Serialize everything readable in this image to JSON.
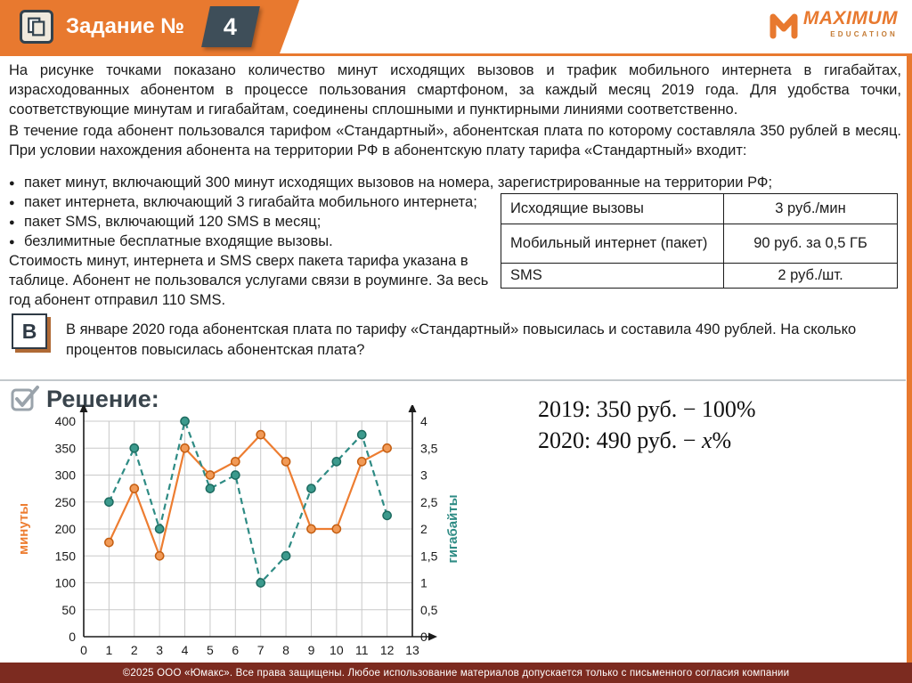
{
  "header": {
    "task_label": "Задание №",
    "task_number": "4",
    "logo": {
      "brand": "MAXIMUM",
      "sub": "EDUCATION"
    }
  },
  "problem": {
    "p1": "На рисунке точками показано количество минут исходящих вызовов и трафик мобильного интернета в гигабайтах, израсходованных абонентом в процессе пользования смартфоном, за каждый месяц 2019 года. Для удобства точки, соответствующие минутам и гигабайтам, соединены сплошными и пунктирными линиями соответственно.",
    "p2": "В течение года абонент пользовался тарифом «Стандартный», абонентская плата по которому составляла 350 рублей в месяц. При условии нахождения абонента на территории РФ в абонентскую плату тарифа «Стандартный» входит:",
    "bullets": [
      "пакет минут, включающий 300 минут исходящих вызовов на номера, зарегистрированные на территории РФ;",
      "пакет интернета, включающий 3 гигабайта мобильного интернета;",
      "пакет SMS, включающий 120 SMS в месяц;",
      "безлимитные бесплатные входящие вызовы."
    ],
    "p3": "Стоимость минут, интернета и SMS сверх пакета тарифа указана в таблице. Абонент не пользовался услугами связи в роуминге. За весь год абонент отправил 110 SMS."
  },
  "price_table": {
    "rows": [
      {
        "name": "Исходящие вызовы",
        "price": "3 руб./мин"
      },
      {
        "name": "Мобильный интернет (пакет)",
        "price": "90 руб. за 0,5 ГБ"
      },
      {
        "name": "SMS",
        "price": "2 руб./шт."
      }
    ]
  },
  "question": {
    "marker": "В",
    "text": "В январе 2020 года абонентская плата по тарифу «Стандартный» повысилась и составила 490 рублей. На сколько процентов повысилась абонентская плата?"
  },
  "solution": {
    "title": "Решение:",
    "line1": "2019: 350 руб. − 100%",
    "line2_pre": "2020: 490 руб. − ",
    "line2_var": "x",
    "line2_post": "%"
  },
  "footer": {
    "text": "©2025 ООО «Юмакс». Все права защищены. Любое использование материалов допускается только с письменного согласия компании"
  },
  "colors": {
    "accent_orange": "#E8792F",
    "slate": "#3E4E59",
    "teal": "#2E8B84",
    "minutes_line": "#ED7D31",
    "footer_maroon": "#7C2B20"
  },
  "chart_data": {
    "type": "line",
    "title": "",
    "x": [
      1,
      2,
      3,
      4,
      5,
      6,
      7,
      8,
      9,
      10,
      11,
      12
    ],
    "x_axis": {
      "min": 0,
      "max": 13,
      "step": 1
    },
    "left_axis": {
      "label": "минуты",
      "min": 0,
      "max": 400,
      "step": 50,
      "color": "#ED7D31"
    },
    "right_axis": {
      "label": "гигабайты",
      "min": 0,
      "max": 4,
      "step": 0.5,
      "color": "#2E8B84"
    },
    "grid": true,
    "legend": "none",
    "series": [
      {
        "name": "минуты",
        "axis": "left",
        "line": "solid",
        "color": "#ED7D31",
        "point_fill": "#F19A57",
        "point_stroke": "#C45E11",
        "values": [
          175,
          275,
          150,
          350,
          300,
          325,
          375,
          325,
          200,
          200,
          325,
          350
        ]
      },
      {
        "name": "гигабайты",
        "axis": "right",
        "line": "dashed",
        "color": "#2E8B84",
        "point_fill": "#3C9A8D",
        "point_stroke": "#1D6B60",
        "values": [
          2.5,
          3.5,
          2,
          4,
          2.75,
          3,
          1,
          1.5,
          2.75,
          3.25,
          3.75,
          2.25
        ]
      }
    ]
  }
}
